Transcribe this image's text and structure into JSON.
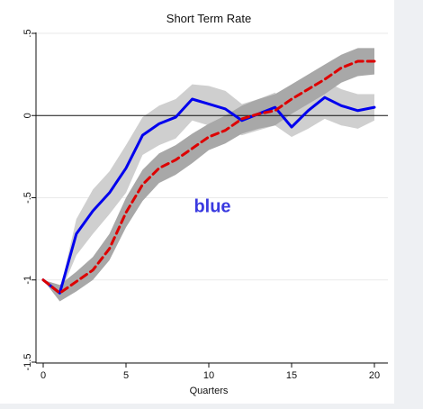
{
  "chart_data": {
    "type": "line",
    "title": "Short Term Rate",
    "xlabel": "Quarters",
    "ylabel": "",
    "xlim": [
      0,
      20
    ],
    "ylim": [
      -1.5,
      0.5
    ],
    "x_ticks": [
      0,
      5,
      10,
      15,
      20
    ],
    "x_tick_labels": [
      "0",
      "5",
      "10",
      "15",
      "20"
    ],
    "y_ticks": [
      -1.5,
      -1,
      -0.5,
      0,
      0.5
    ],
    "y_tick_labels": [
      "-1.5",
      "-1",
      "-.5",
      "0",
      ".5"
    ],
    "grid": "horizontal",
    "zero_line": 0,
    "annotation": {
      "text": "blue",
      "x": 10,
      "y": -0.55,
      "color": "#3a3ae0"
    },
    "x": [
      0,
      1,
      2,
      3,
      4,
      5,
      6,
      7,
      8,
      9,
      10,
      11,
      12,
      13,
      14,
      15,
      16,
      17,
      18,
      19,
      20
    ],
    "series": [
      {
        "style": "solid",
        "color": "#0000ee",
        "values": [
          -1.0,
          -1.08,
          -0.72,
          -0.58,
          -0.47,
          -0.32,
          -0.12,
          -0.05,
          -0.01,
          0.1,
          0.07,
          0.04,
          -0.03,
          0.01,
          0.05,
          -0.07,
          0.03,
          0.11,
          0.06,
          0.03,
          0.05
        ]
      },
      {
        "style": "dashed",
        "color": "#dd0000",
        "values": [
          -1.0,
          -1.08,
          -1.01,
          -0.94,
          -0.81,
          -0.59,
          -0.42,
          -0.32,
          -0.27,
          -0.2,
          -0.13,
          -0.09,
          -0.02,
          0.01,
          0.03,
          0.1,
          0.16,
          0.22,
          0.29,
          0.33,
          0.33
        ]
      }
    ],
    "bands": [
      {
        "fill": "#cfcfcf",
        "lower": [
          -1.0,
          -1.09,
          -0.85,
          -0.72,
          -0.6,
          -0.47,
          -0.24,
          -0.18,
          -0.14,
          -0.03,
          -0.06,
          -0.09,
          -0.12,
          -0.09,
          -0.06,
          -0.13,
          -0.08,
          -0.02,
          -0.06,
          -0.08,
          -0.03
        ],
        "upper": [
          -1.0,
          -1.07,
          -0.63,
          -0.45,
          -0.34,
          -0.18,
          -0.01,
          0.06,
          0.1,
          0.19,
          0.18,
          0.15,
          0.07,
          0.1,
          0.14,
          0.03,
          0.13,
          0.21,
          0.16,
          0.13,
          0.13
        ]
      },
      {
        "fill": "#a8a8a8",
        "lower": [
          -1.0,
          -1.13,
          -1.07,
          -1.0,
          -0.88,
          -0.68,
          -0.52,
          -0.41,
          -0.36,
          -0.29,
          -0.21,
          -0.17,
          -0.11,
          -0.08,
          -0.06,
          0.01,
          0.07,
          0.13,
          0.2,
          0.24,
          0.25
        ],
        "upper": [
          -1.0,
          -1.03,
          -0.95,
          -0.86,
          -0.72,
          -0.5,
          -0.33,
          -0.23,
          -0.18,
          -0.11,
          -0.05,
          0.0,
          0.06,
          0.1,
          0.13,
          0.19,
          0.25,
          0.31,
          0.37,
          0.41,
          0.41
        ]
      }
    ]
  }
}
